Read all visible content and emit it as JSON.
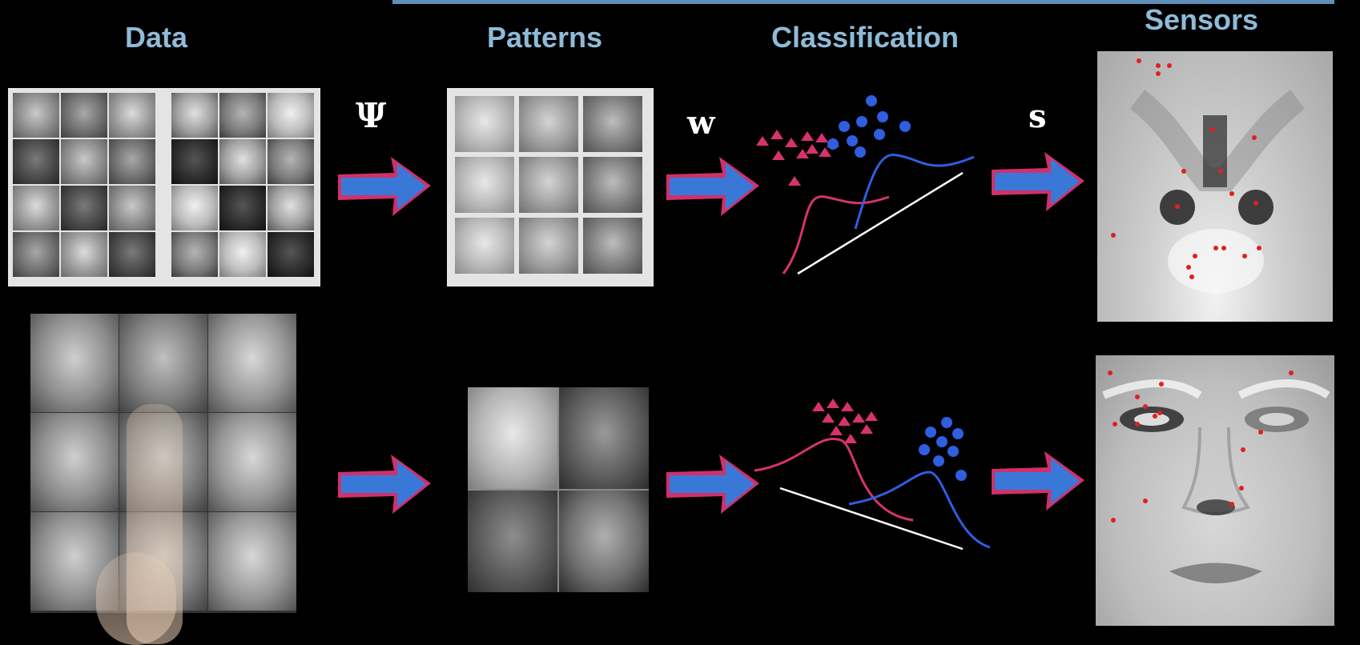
{
  "headers": {
    "data": "Data",
    "patterns": "Patterns",
    "classification": "Classification",
    "sensors": "Sensors"
  },
  "symbols": {
    "psi": "Ψ",
    "w": "w",
    "s": "s"
  },
  "icons": {
    "arrow": "right-arrow-icon"
  },
  "colors": {
    "background": "#000000",
    "header_text": "#8fbbd8",
    "arrow_fill": "#3a78d8",
    "arrow_outline": "#d0306c",
    "class_a": "#d6336c",
    "class_b": "#2f5ee0",
    "sensor_dot": "#e02020",
    "decision_line": "#ffffff"
  }
}
